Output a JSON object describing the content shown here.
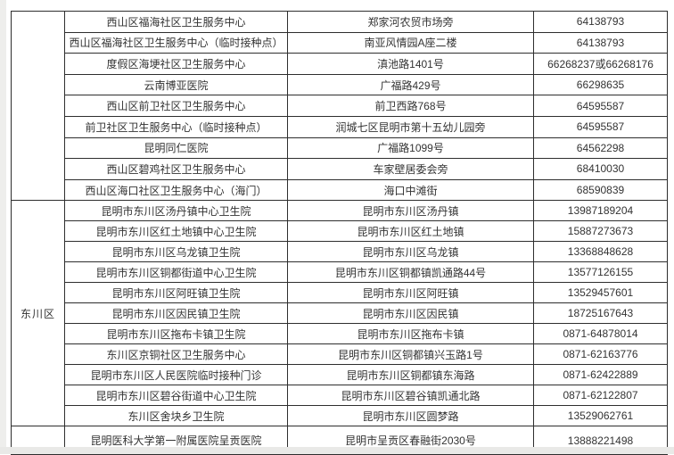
{
  "colors": {
    "border": "#2e2e2e",
    "text": "#333333",
    "page_margin": "#eaeae8",
    "background": "#ffffff"
  },
  "table": {
    "columns": [
      "region",
      "facility",
      "address",
      "phone"
    ],
    "sections": [
      {
        "region": "",
        "rows": [
          [
            "西山区福海社区卫生服务中心",
            "郑家河农贸市场旁",
            "64138793"
          ],
          [
            "西山区福海社区卫生服务中心（临时接种点）",
            "南亚风情园A座二楼",
            "64138793"
          ],
          [
            "度假区海埂社区卫生服务中心",
            "滇池路1401号",
            "66268237或66268176"
          ],
          [
            "云南博亚医院",
            "广福路429号",
            "66298635"
          ],
          [
            "西山区前卫社区卫生服务中心",
            "前卫西路768号",
            "64595587"
          ],
          [
            "前卫社区卫生服务中心（临时接种点）",
            "润城七区昆明市第十五幼儿园旁",
            "64595587"
          ],
          [
            "昆明同仁医院",
            "广福路1099号",
            "64562298"
          ],
          [
            "西山区碧鸡社区卫生服务中心",
            "车家壁居委会旁",
            "68410030"
          ],
          [
            "西山区海口社区卫生服务中心（海门）",
            "海口中滩街",
            "68590839"
          ]
        ]
      },
      {
        "region": "东川区",
        "rows": [
          [
            "昆明市东川区汤丹镇中心卫生院",
            "昆明市东川区汤丹镇",
            "13987189204"
          ],
          [
            "昆明市东川区红土地镇中心卫生院",
            "昆明市东川区红土地镇",
            "15887273673"
          ],
          [
            "昆明市东川区乌龙镇卫生院",
            "昆明市东川区乌龙镇",
            "13368848628"
          ],
          [
            "昆明市东川区铜都街道中心卫生院",
            "昆明市东川区铜都镇凯通路44号",
            "13577126155"
          ],
          [
            "昆明市东川区阿旺镇卫生院",
            "昆明市东川区阿旺镇",
            "13529457601"
          ],
          [
            "昆明市东川区因民镇卫生院",
            "昆明市东川区因民镇",
            "18725167643"
          ],
          [
            "昆明市东川区拖布卡镇卫生院",
            "昆明市东川区拖布卡镇",
            "0871-64878014"
          ],
          [
            "东川区京铜社区卫生服务中心",
            "昆明市东川区铜都镇兴玉路1号",
            "0871-62163776"
          ],
          [
            "昆明市东川区人民医院临时接种门诊",
            "昆明市东川区铜都镇东海路",
            "0871-62422889"
          ],
          [
            "昆明市东川区碧谷街道中心卫生院",
            "昆明市东川区碧谷镇凯通北路",
            "0871-62122807"
          ],
          [
            "东川区舍块乡卫生院",
            "昆明市东川区圆梦路",
            "13529062761"
          ]
        ]
      },
      {
        "region": "",
        "rows": [
          [
            "昆明医科大学第一附属医院呈贡医院",
            "昆明市呈贡区春融街2030号",
            "13888221498"
          ]
        ]
      }
    ]
  }
}
